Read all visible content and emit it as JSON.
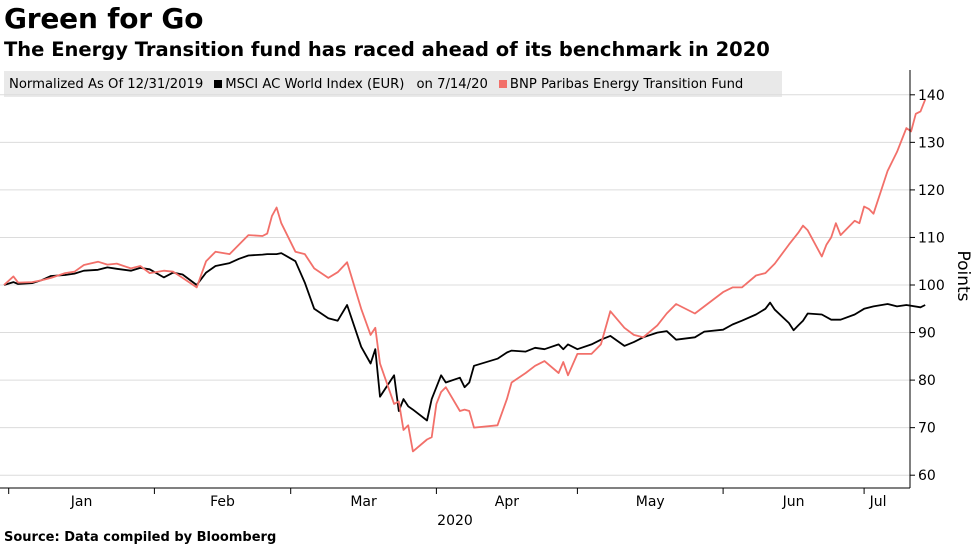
{
  "header": {
    "title": "Green for Go",
    "subtitle": "The Energy Transition fund has raced ahead of its benchmark in 2020"
  },
  "legend": {
    "note": "Normalized As Of 12/31/2019",
    "date_suffix": "on 7/14/20"
  },
  "source": "Source: Data compiled by Bloomberg",
  "colors": {
    "msci": "#000000",
    "bnp": "#f2706a",
    "grid": "#dcdcdc"
  },
  "chart_data": {
    "type": "line",
    "title": "Green for Go",
    "subtitle": "The Energy Transition fund has raced ahead of its benchmark in 2020",
    "ylabel": "Points",
    "xlabel": "2020",
    "x_range": [
      "2019-12-31",
      "2020-07-14"
    ],
    "ylim": [
      58,
      148
    ],
    "y_ticks": [
      60,
      70,
      80,
      90,
      100,
      110,
      120,
      130,
      140
    ],
    "x_month_ticks": [
      "2020-01-01",
      "2020-02-01",
      "2020-03-01",
      "2020-04-01",
      "2020-05-01",
      "2020-06-01",
      "2020-07-01"
    ],
    "x_tick_labels": [
      "Jan",
      "Feb",
      "Mar",
      "Apr",
      "May",
      "Jun",
      "Jul"
    ],
    "x_year_label": "2020",
    "grid": "horizontal",
    "legend_position": "top",
    "series": [
      {
        "name": "MSCI AC World Index (EUR)",
        "color": "#000000",
        "points": [
          [
            "2019-12-31",
            100.0
          ],
          [
            "2020-01-02",
            100.6
          ],
          [
            "2020-01-03",
            100.2
          ],
          [
            "2020-01-06",
            100.4
          ],
          [
            "2020-01-08",
            101.0
          ],
          [
            "2020-01-10",
            101.9
          ],
          [
            "2020-01-13",
            102.1
          ],
          [
            "2020-01-15",
            102.4
          ],
          [
            "2020-01-17",
            103.0
          ],
          [
            "2020-01-20",
            103.2
          ],
          [
            "2020-01-22",
            103.7
          ],
          [
            "2020-01-24",
            103.4
          ],
          [
            "2020-01-27",
            103.0
          ],
          [
            "2020-01-29",
            103.6
          ],
          [
            "2020-01-31",
            103.3
          ],
          [
            "2020-02-03",
            101.6
          ],
          [
            "2020-02-05",
            102.6
          ],
          [
            "2020-02-07",
            102.2
          ],
          [
            "2020-02-10",
            100.0
          ],
          [
            "2020-02-12",
            102.6
          ],
          [
            "2020-02-14",
            104.0
          ],
          [
            "2020-02-17",
            104.6
          ],
          [
            "2020-02-19",
            105.5
          ],
          [
            "2020-02-21",
            106.2
          ],
          [
            "2020-02-24",
            106.4
          ],
          [
            "2020-02-25",
            106.5
          ],
          [
            "2020-02-27",
            106.5
          ],
          [
            "2020-02-28",
            106.7
          ],
          [
            "2020-03-02",
            105.0
          ],
          [
            "2020-03-04",
            100.5
          ],
          [
            "2020-03-06",
            95.0
          ],
          [
            "2020-03-09",
            93.0
          ],
          [
            "2020-03-11",
            92.5
          ],
          [
            "2020-03-13",
            95.8
          ],
          [
            "2020-03-16",
            87.0
          ],
          [
            "2020-03-18",
            83.5
          ],
          [
            "2020-03-19",
            86.5
          ],
          [
            "2020-03-20",
            76.5
          ],
          [
            "2020-03-23",
            81.0
          ],
          [
            "2020-03-24",
            73.5
          ],
          [
            "2020-03-25",
            76.0
          ],
          [
            "2020-03-26",
            74.5
          ],
          [
            "2020-03-27",
            73.8
          ],
          [
            "2020-03-30",
            71.5
          ],
          [
            "2020-03-31",
            76.0
          ],
          [
            "2020-04-01",
            78.5
          ],
          [
            "2020-04-02",
            81.0
          ],
          [
            "2020-04-03",
            79.5
          ],
          [
            "2020-04-06",
            80.5
          ],
          [
            "2020-04-07",
            78.5
          ],
          [
            "2020-04-08",
            79.5
          ],
          [
            "2020-04-09",
            83.0
          ],
          [
            "2020-04-14",
            84.5
          ],
          [
            "2020-04-16",
            85.8
          ],
          [
            "2020-04-17",
            86.2
          ],
          [
            "2020-04-20",
            86.0
          ],
          [
            "2020-04-22",
            86.8
          ],
          [
            "2020-04-24",
            86.5
          ],
          [
            "2020-04-27",
            87.5
          ],
          [
            "2020-04-28",
            86.5
          ],
          [
            "2020-04-29",
            87.5
          ],
          [
            "2020-05-01",
            86.5
          ],
          [
            "2020-05-04",
            87.5
          ],
          [
            "2020-05-06",
            88.5
          ],
          [
            "2020-05-08",
            89.3
          ],
          [
            "2020-05-11",
            87.2
          ],
          [
            "2020-05-13",
            88.0
          ],
          [
            "2020-05-15",
            89.0
          ],
          [
            "2020-05-18",
            90.0
          ],
          [
            "2020-05-20",
            90.3
          ],
          [
            "2020-05-22",
            88.5
          ],
          [
            "2020-05-26",
            89.0
          ],
          [
            "2020-05-28",
            90.2
          ],
          [
            "2020-06-01",
            90.6
          ],
          [
            "2020-06-03",
            91.7
          ],
          [
            "2020-06-05",
            92.5
          ],
          [
            "2020-06-08",
            93.8
          ],
          [
            "2020-06-10",
            95.0
          ],
          [
            "2020-06-11",
            96.3
          ],
          [
            "2020-06-12",
            94.8
          ],
          [
            "2020-06-15",
            92.0
          ],
          [
            "2020-06-16",
            90.5
          ],
          [
            "2020-06-17",
            91.5
          ],
          [
            "2020-06-18",
            92.5
          ],
          [
            "2020-06-19",
            94.0
          ],
          [
            "2020-06-22",
            93.8
          ],
          [
            "2020-06-24",
            92.7
          ],
          [
            "2020-06-26",
            92.7
          ],
          [
            "2020-06-29",
            93.8
          ],
          [
            "2020-07-01",
            95.0
          ],
          [
            "2020-07-03",
            95.5
          ],
          [
            "2020-07-06",
            96.0
          ],
          [
            "2020-07-08",
            95.5
          ],
          [
            "2020-07-10",
            95.8
          ],
          [
            "2020-07-13",
            95.3
          ],
          [
            "2020-07-14",
            95.8
          ]
        ]
      },
      {
        "name": "BNP Paribas Energy Transition Fund",
        "color": "#f2706a",
        "points": [
          [
            "2019-12-31",
            100.0
          ],
          [
            "2020-01-02",
            101.8
          ],
          [
            "2020-01-03",
            100.5
          ],
          [
            "2020-01-06",
            100.6
          ],
          [
            "2020-01-08",
            101.0
          ],
          [
            "2020-01-10",
            101.5
          ],
          [
            "2020-01-13",
            102.5
          ],
          [
            "2020-01-15",
            102.8
          ],
          [
            "2020-01-17",
            104.2
          ],
          [
            "2020-01-20",
            104.9
          ],
          [
            "2020-01-22",
            104.3
          ],
          [
            "2020-01-24",
            104.5
          ],
          [
            "2020-01-27",
            103.5
          ],
          [
            "2020-01-29",
            104.0
          ],
          [
            "2020-01-31",
            102.5
          ],
          [
            "2020-02-03",
            103.0
          ],
          [
            "2020-02-05",
            102.8
          ],
          [
            "2020-02-07",
            101.5
          ],
          [
            "2020-02-10",
            99.5
          ],
          [
            "2020-02-12",
            105.0
          ],
          [
            "2020-02-14",
            107.0
          ],
          [
            "2020-02-17",
            106.5
          ],
          [
            "2020-02-19",
            108.5
          ],
          [
            "2020-02-21",
            110.5
          ],
          [
            "2020-02-24",
            110.3
          ],
          [
            "2020-02-25",
            110.8
          ],
          [
            "2020-02-26",
            114.5
          ],
          [
            "2020-02-27",
            116.3
          ],
          [
            "2020-02-28",
            113.0
          ],
          [
            "2020-03-02",
            107.0
          ],
          [
            "2020-03-04",
            106.5
          ],
          [
            "2020-03-06",
            103.5
          ],
          [
            "2020-03-09",
            101.5
          ],
          [
            "2020-03-11",
            102.7
          ],
          [
            "2020-03-13",
            104.8
          ],
          [
            "2020-03-16",
            95.0
          ],
          [
            "2020-03-18",
            89.5
          ],
          [
            "2020-03-19",
            91.0
          ],
          [
            "2020-03-20",
            83.5
          ],
          [
            "2020-03-23",
            75.0
          ],
          [
            "2020-03-24",
            75.5
          ],
          [
            "2020-03-25",
            69.5
          ],
          [
            "2020-03-26",
            70.5
          ],
          [
            "2020-03-27",
            65.0
          ],
          [
            "2020-03-30",
            67.5
          ],
          [
            "2020-03-31",
            68.0
          ],
          [
            "2020-04-01",
            75.0
          ],
          [
            "2020-04-02",
            77.5
          ],
          [
            "2020-04-03",
            78.5
          ],
          [
            "2020-04-06",
            73.5
          ],
          [
            "2020-04-07",
            73.8
          ],
          [
            "2020-04-08",
            73.5
          ],
          [
            "2020-04-09",
            70.0
          ],
          [
            "2020-04-14",
            70.5
          ],
          [
            "2020-04-16",
            76.0
          ],
          [
            "2020-04-17",
            79.5
          ],
          [
            "2020-04-20",
            81.5
          ],
          [
            "2020-04-22",
            83.0
          ],
          [
            "2020-04-24",
            84.0
          ],
          [
            "2020-04-27",
            81.5
          ],
          [
            "2020-04-28",
            83.8
          ],
          [
            "2020-04-29",
            81.0
          ],
          [
            "2020-05-01",
            85.5
          ],
          [
            "2020-05-04",
            85.5
          ],
          [
            "2020-05-06",
            87.5
          ],
          [
            "2020-05-08",
            94.5
          ],
          [
            "2020-05-11",
            91.0
          ],
          [
            "2020-05-13",
            89.5
          ],
          [
            "2020-05-15",
            89.0
          ],
          [
            "2020-05-18",
            91.5
          ],
          [
            "2020-05-20",
            94.0
          ],
          [
            "2020-05-22",
            96.0
          ],
          [
            "2020-05-26",
            94.0
          ],
          [
            "2020-05-28",
            95.5
          ],
          [
            "2020-06-01",
            98.5
          ],
          [
            "2020-06-03",
            99.5
          ],
          [
            "2020-06-05",
            99.5
          ],
          [
            "2020-06-08",
            102.0
          ],
          [
            "2020-06-10",
            102.5
          ],
          [
            "2020-06-12",
            104.5
          ],
          [
            "2020-06-15",
            108.5
          ],
          [
            "2020-06-17",
            111.0
          ],
          [
            "2020-06-18",
            112.5
          ],
          [
            "2020-06-19",
            111.5
          ],
          [
            "2020-06-22",
            106.0
          ],
          [
            "2020-06-23",
            108.5
          ],
          [
            "2020-06-24",
            110.0
          ],
          [
            "2020-06-25",
            113.0
          ],
          [
            "2020-06-26",
            110.5
          ],
          [
            "2020-06-29",
            113.5
          ],
          [
            "2020-06-30",
            113.0
          ],
          [
            "2020-07-01",
            116.5
          ],
          [
            "2020-07-02",
            116.0
          ],
          [
            "2020-07-03",
            115.0
          ],
          [
            "2020-07-06",
            124.0
          ],
          [
            "2020-07-07",
            126.0
          ],
          [
            "2020-07-08",
            128.0
          ],
          [
            "2020-07-09",
            130.5
          ],
          [
            "2020-07-10",
            133.0
          ],
          [
            "2020-07-11",
            132.3
          ],
          [
            "2020-07-12",
            136.0
          ],
          [
            "2020-07-13",
            136.5
          ],
          [
            "2020-07-14",
            139.0
          ]
        ]
      }
    ]
  }
}
